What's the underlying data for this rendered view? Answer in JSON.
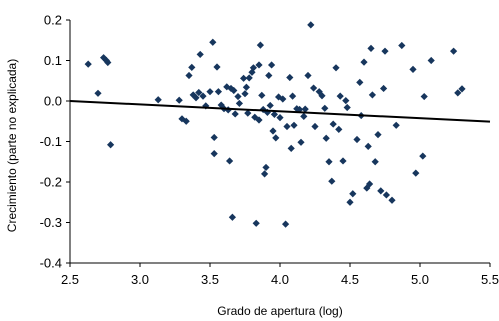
{
  "chart_data": {
    "type": "scatter",
    "xlabel": "Grado de apertura (log)",
    "ylabel": "Crecimiento (parte no explicada)",
    "xlim": [
      2.5,
      5.5
    ],
    "ylim": [
      -0.4,
      0.2
    ],
    "xticks": [
      2.5,
      3.0,
      3.5,
      4.0,
      4.5,
      5.0,
      5.5
    ],
    "yticks": [
      0.2,
      0.1,
      0.0,
      -0.1,
      -0.2,
      -0.3,
      -0.4
    ],
    "xtick_labels": [
      "2.5",
      "3.0",
      "3.5",
      "4.0",
      "4.5",
      "5.0",
      "5.5"
    ],
    "ytick_labels": [
      "0.2",
      "0.1",
      "0.0",
      "-0.1",
      "-0.2",
      "-0.3",
      "-0.4"
    ],
    "grid": false,
    "marker": "diamond",
    "marker_color": "#17365d",
    "trendline": {
      "x": [
        2.5,
        5.5
      ],
      "y": [
        0.0,
        -0.051
      ],
      "color": "#000000"
    },
    "points": [
      [
        2.63,
        0.091
      ],
      [
        2.7,
        0.019
      ],
      [
        2.74,
        0.107
      ],
      [
        2.76,
        0.1
      ],
      [
        2.77,
        0.095
      ],
      [
        2.79,
        -0.108
      ],
      [
        3.13,
        0.003
      ],
      [
        3.28,
        0.002
      ],
      [
        3.3,
        -0.044
      ],
      [
        3.33,
        -0.05
      ],
      [
        3.35,
        0.063
      ],
      [
        3.37,
        0.083
      ],
      [
        3.38,
        0.015
      ],
      [
        3.4,
        0.008
      ],
      [
        3.42,
        0.021
      ],
      [
        3.43,
        0.115
      ],
      [
        3.45,
        0.012
      ],
      [
        3.47,
        -0.012
      ],
      [
        3.5,
        0.023
      ],
      [
        3.52,
        0.145
      ],
      [
        3.53,
        -0.09
      ],
      [
        3.53,
        -0.13
      ],
      [
        3.55,
        0.084
      ],
      [
        3.56,
        0.023
      ],
      [
        3.58,
        -0.01
      ],
      [
        3.6,
        -0.019
      ],
      [
        3.62,
        0.035
      ],
      [
        3.63,
        -0.022
      ],
      [
        3.64,
        -0.148
      ],
      [
        3.65,
        0.031
      ],
      [
        3.66,
        -0.287
      ],
      [
        3.67,
        0.026
      ],
      [
        3.68,
        -0.032
      ],
      [
        3.7,
        0.011
      ],
      [
        3.71,
        -0.006
      ],
      [
        3.74,
        0.056
      ],
      [
        3.75,
        0.018
      ],
      [
        3.76,
        0.034
      ],
      [
        3.77,
        -0.03
      ],
      [
        3.78,
        0.057
      ],
      [
        3.8,
        0.071
      ],
      [
        3.81,
        0.082
      ],
      [
        3.82,
        -0.04
      ],
      [
        3.83,
        -0.302
      ],
      [
        3.85,
        0.089
      ],
      [
        3.85,
        -0.047
      ],
      [
        3.86,
        0.138
      ],
      [
        3.87,
        0.014
      ],
      [
        3.88,
        -0.021
      ],
      [
        3.89,
        -0.18
      ],
      [
        3.9,
        -0.164
      ],
      [
        3.91,
        -0.028
      ],
      [
        3.92,
        0.063
      ],
      [
        3.93,
        -0.011
      ],
      [
        3.94,
        0.089
      ],
      [
        3.95,
        -0.074
      ],
      [
        3.96,
        -0.033
      ],
      [
        3.97,
        -0.091
      ],
      [
        3.99,
        0.01
      ],
      [
        4.0,
        -0.041
      ],
      [
        4.02,
        0.005
      ],
      [
        4.04,
        -0.304
      ],
      [
        4.05,
        -0.063
      ],
      [
        4.07,
        0.058
      ],
      [
        4.08,
        -0.117
      ],
      [
        4.09,
        0.012
      ],
      [
        4.1,
        -0.06
      ],
      [
        4.12,
        -0.019
      ],
      [
        4.14,
        -0.021
      ],
      [
        4.15,
        -0.102
      ],
      [
        4.17,
        -0.038
      ],
      [
        4.18,
        -0.02
      ],
      [
        4.2,
        0.063
      ],
      [
        4.22,
        0.188
      ],
      [
        4.24,
        0.032
      ],
      [
        4.25,
        -0.063
      ],
      [
        4.28,
        0.023
      ],
      [
        4.3,
        0.013
      ],
      [
        4.32,
        -0.018
      ],
      [
        4.33,
        -0.092
      ],
      [
        4.35,
        -0.15
      ],
      [
        4.37,
        -0.198
      ],
      [
        4.38,
        -0.057
      ],
      [
        4.4,
        0.082
      ],
      [
        4.42,
        -0.07
      ],
      [
        4.43,
        0.012
      ],
      [
        4.45,
        -0.148
      ],
      [
        4.47,
        0.001
      ],
      [
        4.48,
        -0.016
      ],
      [
        4.5,
        -0.25
      ],
      [
        4.52,
        -0.229
      ],
      [
        4.55,
        -0.095
      ],
      [
        4.57,
        0.046
      ],
      [
        4.58,
        -0.036
      ],
      [
        4.6,
        0.096
      ],
      [
        4.62,
        -0.215
      ],
      [
        4.63,
        -0.112
      ],
      [
        4.64,
        -0.205
      ],
      [
        4.65,
        0.13
      ],
      [
        4.66,
        0.015
      ],
      [
        4.68,
        -0.15
      ],
      [
        4.7,
        -0.083
      ],
      [
        4.72,
        -0.222
      ],
      [
        4.74,
        0.031
      ],
      [
        4.75,
        0.123
      ],
      [
        4.76,
        -0.232
      ],
      [
        4.8,
        -0.245
      ],
      [
        4.83,
        -0.06
      ],
      [
        4.87,
        0.137
      ],
      [
        4.95,
        0.078
      ],
      [
        4.97,
        -0.178
      ],
      [
        5.02,
        -0.136
      ],
      [
        5.03,
        0.011
      ],
      [
        5.08,
        0.1
      ],
      [
        5.24,
        0.123
      ],
      [
        5.27,
        0.02
      ],
      [
        5.3,
        0.03
      ]
    ]
  }
}
